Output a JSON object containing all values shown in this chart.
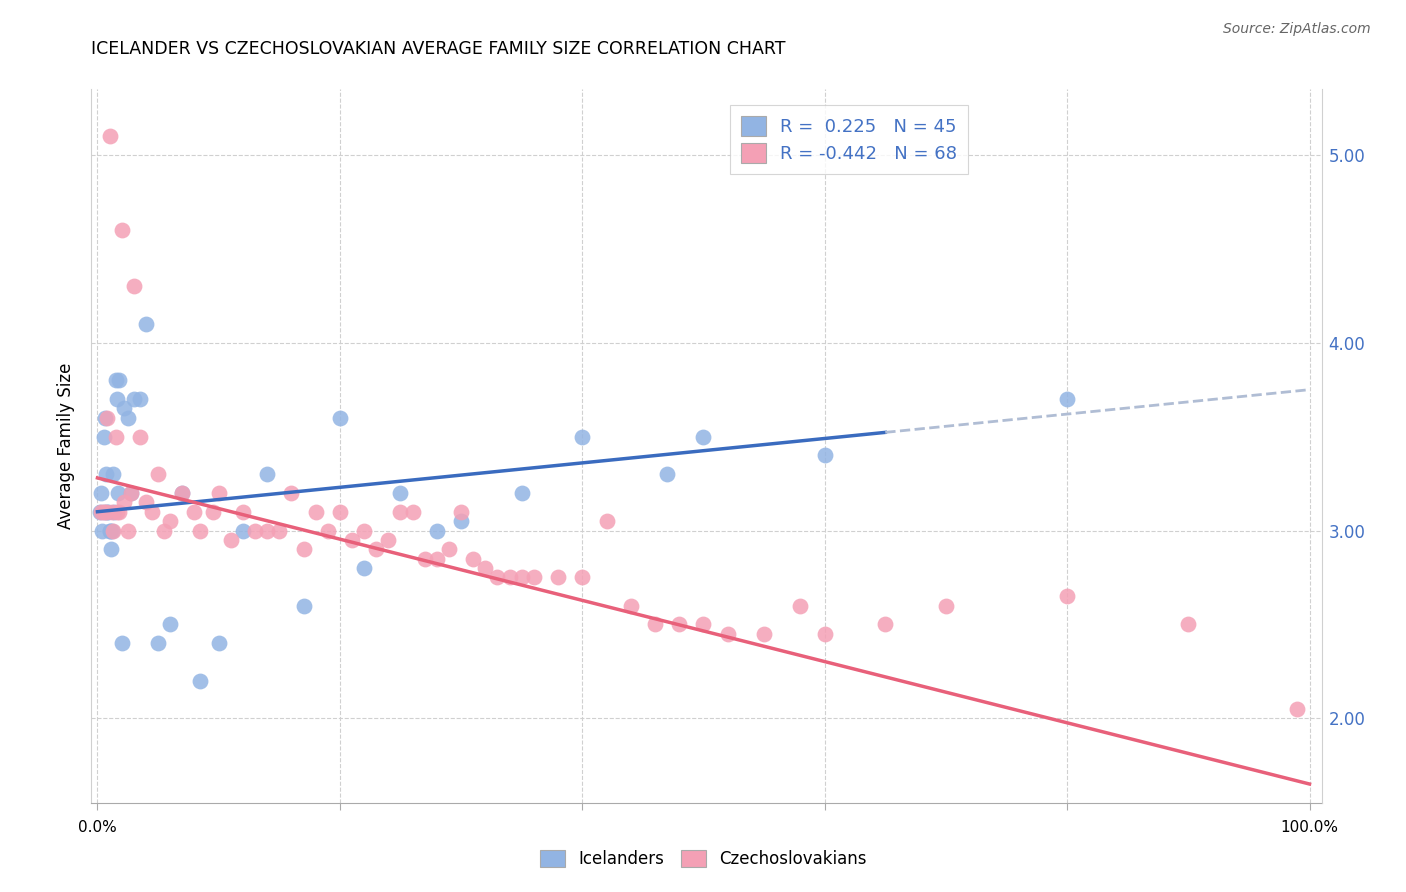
{
  "title": "ICELANDER VS CZECHOSLOVAKIAN AVERAGE FAMILY SIZE CORRELATION CHART",
  "source": "Source: ZipAtlas.com",
  "ylabel": "Average Family Size",
  "ylim": [
    1.55,
    5.35
  ],
  "xlim": [
    -0.5,
    101.0
  ],
  "yticks": [
    2.0,
    3.0,
    4.0,
    5.0
  ],
  "xtick_positions": [
    0,
    20,
    40,
    60,
    80,
    100
  ],
  "icelander_color": "#92b4e3",
  "czechoslovakian_color": "#f4a0b5",
  "icelander_line_color": "#3a6bbf",
  "czechoslovakian_line_color": "#e8607a",
  "trend_ext_color": "#b0bdd4",
  "grid_color": "#d0d0d0",
  "background_color": "#ffffff",
  "right_tick_color": "#4472c4",
  "icelanders_label": "Icelanders",
  "czechoslovakians_label": "Czechoslovakians",
  "icelander_x": [
    0.2,
    0.3,
    0.4,
    0.5,
    0.5,
    0.6,
    0.7,
    0.8,
    0.9,
    1.0,
    1.0,
    1.1,
    1.2,
    1.3,
    1.4,
    1.5,
    1.6,
    1.7,
    1.8,
    2.0,
    2.2,
    2.5,
    2.8,
    3.0,
    3.5,
    4.0,
    5.0,
    6.0,
    7.0,
    8.5,
    10.0,
    12.0,
    14.0,
    17.0,
    20.0,
    22.0,
    25.0,
    28.0,
    30.0,
    35.0,
    40.0,
    47.0,
    50.0,
    60.0,
    80.0
  ],
  "icelander_y": [
    3.1,
    3.2,
    3.0,
    3.5,
    3.1,
    3.6,
    3.3,
    3.1,
    3.1,
    3.0,
    3.0,
    2.9,
    3.0,
    3.3,
    3.1,
    3.8,
    3.7,
    3.2,
    3.8,
    2.4,
    3.65,
    3.6,
    3.2,
    3.7,
    3.7,
    4.1,
    2.4,
    2.5,
    3.2,
    2.2,
    2.4,
    3.0,
    3.3,
    2.6,
    3.6,
    2.8,
    3.2,
    3.0,
    3.05,
    3.2,
    3.5,
    3.3,
    3.5,
    3.4,
    3.7
  ],
  "czechoslovakian_x": [
    0.3,
    0.5,
    0.7,
    0.8,
    1.0,
    1.2,
    1.3,
    1.5,
    1.6,
    1.8,
    2.0,
    2.2,
    2.5,
    2.8,
    3.0,
    3.5,
    4.0,
    4.5,
    5.0,
    5.5,
    6.0,
    7.0,
    8.0,
    8.5,
    9.5,
    10.0,
    11.0,
    12.0,
    13.0,
    14.0,
    15.0,
    16.0,
    17.0,
    18.0,
    19.0,
    20.0,
    21.0,
    22.0,
    23.0,
    24.0,
    25.0,
    26.0,
    27.0,
    28.0,
    29.0,
    30.0,
    31.0,
    32.0,
    33.0,
    34.0,
    35.0,
    36.0,
    38.0,
    40.0,
    42.0,
    44.0,
    46.0,
    48.0,
    50.0,
    52.0,
    55.0,
    58.0,
    60.0,
    65.0,
    70.0,
    80.0,
    90.0,
    99.0
  ],
  "czechoslovakian_y": [
    3.1,
    3.1,
    3.1,
    3.6,
    5.1,
    3.1,
    3.0,
    3.5,
    3.1,
    3.1,
    4.6,
    3.15,
    3.0,
    3.2,
    4.3,
    3.5,
    3.15,
    3.1,
    3.3,
    3.0,
    3.05,
    3.2,
    3.1,
    3.0,
    3.1,
    3.2,
    2.95,
    3.1,
    3.0,
    3.0,
    3.0,
    3.2,
    2.9,
    3.1,
    3.0,
    3.1,
    2.95,
    3.0,
    2.9,
    2.95,
    3.1,
    3.1,
    2.85,
    2.85,
    2.9,
    3.1,
    2.85,
    2.8,
    2.75,
    2.75,
    2.75,
    2.75,
    2.75,
    2.75,
    3.05,
    2.6,
    2.5,
    2.5,
    2.5,
    2.45,
    2.45,
    2.6,
    2.45,
    2.5,
    2.6,
    2.65,
    2.5,
    2.05
  ],
  "icelander_trend_x0": 0,
  "icelander_trend_y0": 3.1,
  "icelander_trend_x1": 100,
  "icelander_trend_y1": 3.75,
  "icelander_solid_end": 65,
  "czechoslovakian_trend_x0": 0,
  "czechoslovakian_trend_y0": 3.28,
  "czechoslovakian_trend_x1": 100,
  "czechoslovakian_trend_y1": 1.65
}
